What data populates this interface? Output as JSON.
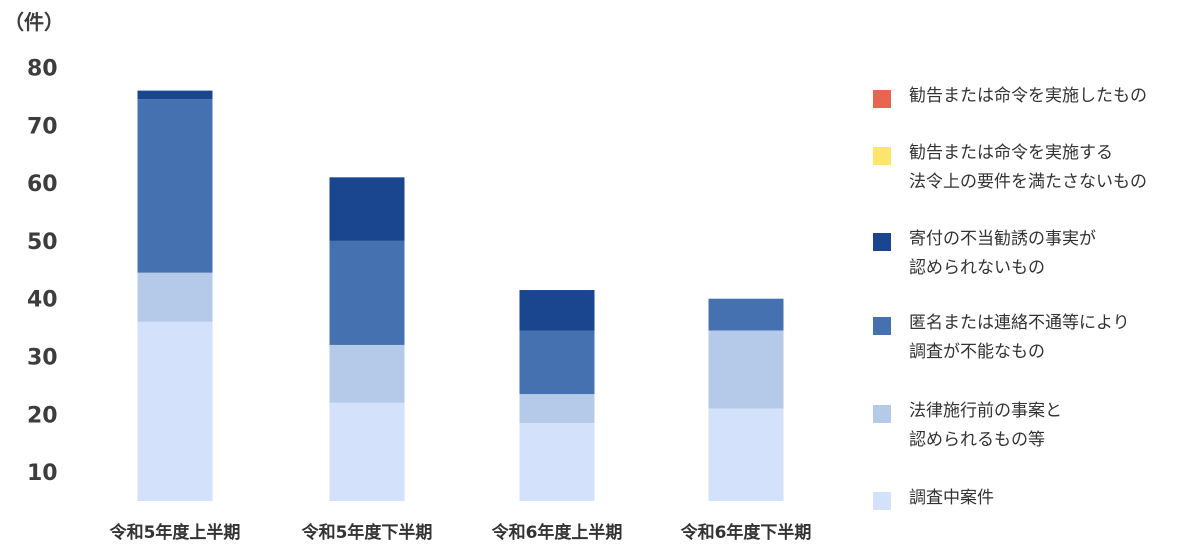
{
  "chart_data": {
    "type": "bar",
    "stacked": true,
    "unit_label": "（件）",
    "yticks": [
      "80",
      "70",
      "60",
      "50",
      "40",
      "30",
      "20",
      "10"
    ],
    "categories": [
      "令和5年度上半期",
      "令和5年度下半期",
      "令和6年度上半期",
      "令和6年度下半期"
    ],
    "series": [
      {
        "name": "調査中案件",
        "color": "#d3e2fa",
        "values": [
          31,
          17,
          13.5,
          16
        ]
      },
      {
        "name": "法律施行前の事案と\n認められるもの等",
        "color": "#b5c9e8",
        "values": [
          8.5,
          10,
          5,
          13.5
        ]
      },
      {
        "name": "匿名または連絡不通等により\n調査が不能なもの",
        "color": "#4571b0",
        "values": [
          30,
          18,
          11,
          5.5
        ]
      },
      {
        "name": "寄付の不当勧誘の事実が\n認められないもの",
        "color": "#1a4690",
        "values": [
          1.5,
          11,
          7,
          0
        ]
      },
      {
        "name": "勧告または命令を実施する\n法令上の要件を満たさないもの",
        "color": "#fce46d",
        "values": [
          0,
          0,
          0,
          0
        ]
      },
      {
        "name": "勧告または命令を実施したもの",
        "color": "#e8664f",
        "values": [
          0,
          0,
          0,
          0
        ]
      }
    ],
    "ylim": [
      5,
      80
    ],
    "legend_position": "right"
  }
}
